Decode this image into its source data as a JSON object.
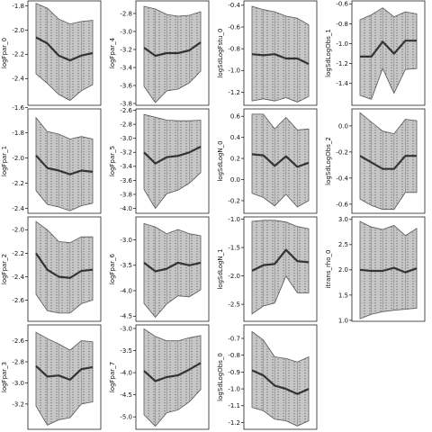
{
  "chart_data": [
    {
      "type": "area",
      "ylabel": "logFpar_0",
      "ylim": [
        -2.62,
        -1.76
      ],
      "yticks": [
        -1.8,
        -2.0,
        -2.2,
        -2.4
      ],
      "x": [
        0,
        1,
        2,
        3,
        4,
        5
      ],
      "upper": [
        -1.78,
        -1.82,
        -1.91,
        -1.95,
        -1.93,
        -1.92
      ],
      "lower": [
        -2.36,
        -2.44,
        -2.53,
        -2.58,
        -2.5,
        -2.45
      ],
      "values": [
        -2.06,
        -2.11,
        -2.21,
        -2.25,
        -2.21,
        -2.19
      ]
    },
    {
      "type": "area",
      "ylabel": "logFpar_1",
      "ylim": [
        -2.44,
        -1.61
      ],
      "yticks": [
        -1.6,
        -1.8,
        -2.0,
        -2.2,
        -2.4
      ],
      "x": [
        0,
        1,
        2,
        3,
        4,
        5
      ],
      "upper": [
        -1.68,
        -1.79,
        -1.81,
        -1.85,
        -1.83,
        -1.85
      ],
      "lower": [
        -2.26,
        -2.37,
        -2.39,
        -2.42,
        -2.38,
        -2.36
      ],
      "values": [
        -1.98,
        -2.08,
        -2.1,
        -2.13,
        -2.1,
        -2.11
      ]
    },
    {
      "type": "area",
      "ylabel": "logFpar_2",
      "ylim": [
        -2.78,
        -1.89
      ],
      "yticks": [
        -2.0,
        -2.2,
        -2.4,
        -2.6
      ],
      "x": [
        0,
        1,
        2,
        3,
        4,
        5
      ],
      "upper": [
        -1.93,
        -2.0,
        -2.1,
        -2.11,
        -2.06,
        -2.06
      ],
      "lower": [
        -2.55,
        -2.69,
        -2.71,
        -2.71,
        -2.63,
        -2.6
      ],
      "values": [
        -2.2,
        -2.34,
        -2.4,
        -2.41,
        -2.35,
        -2.34
      ]
    },
    {
      "type": "area",
      "ylabel": "logFpar_3",
      "ylim": [
        -3.44,
        -2.45
      ],
      "yticks": [
        -2.6,
        -2.8,
        -3.0,
        -3.2
      ],
      "x": [
        0,
        1,
        2,
        3,
        4,
        5
      ],
      "upper": [
        -2.52,
        -2.58,
        -2.63,
        -2.69,
        -2.6,
        -2.61
      ],
      "lower": [
        -3.22,
        -3.4,
        -3.35,
        -3.33,
        -3.2,
        -3.18
      ],
      "values": [
        -2.84,
        -2.94,
        -2.93,
        -2.97,
        -2.87,
        -2.85
      ]
    },
    {
      "type": "area",
      "ylabel": "logFpar_4",
      "ylim": [
        -3.82,
        -2.66
      ],
      "yticks": [
        -2.8,
        -3.0,
        -3.2,
        -3.4,
        -3.6,
        -3.8
      ],
      "x": [
        0,
        1,
        2,
        3,
        4,
        5
      ],
      "upper": [
        -2.72,
        -2.75,
        -2.81,
        -2.83,
        -2.82,
        -2.78
      ],
      "lower": [
        -3.61,
        -3.79,
        -3.66,
        -3.64,
        -3.57,
        -3.44
      ],
      "values": [
        -3.18,
        -3.27,
        -3.24,
        -3.24,
        -3.21,
        -3.12
      ]
    },
    {
      "type": "area",
      "ylabel": "logFpar_5",
      "ylim": [
        -4.07,
        -2.58
      ],
      "yticks": [
        -2.6,
        -2.8,
        -3.0,
        -3.2,
        -3.4,
        -3.6,
        -3.8,
        -4.0
      ],
      "x": [
        0,
        1,
        2,
        3,
        4,
        5
      ],
      "upper": [
        -2.66,
        -2.7,
        -2.74,
        -2.75,
        -2.75,
        -2.74
      ],
      "lower": [
        -3.73,
        -4.0,
        -3.79,
        -3.74,
        -3.64,
        -3.49
      ],
      "values": [
        -3.2,
        -3.36,
        -3.27,
        -3.25,
        -3.2,
        -3.12
      ]
    },
    {
      "type": "area",
      "ylabel": "logFpar_6",
      "ylim": [
        -4.6,
        -2.55
      ],
      "yticks": [
        -3.0,
        -3.5,
        -4.0,
        -4.5
      ],
      "x": [
        0,
        1,
        2,
        3,
        4,
        5
      ],
      "upper": [
        -2.68,
        -2.75,
        -2.88,
        -2.8,
        -2.88,
        -2.92
      ],
      "lower": [
        -4.25,
        -4.52,
        -4.26,
        -4.1,
        -4.12,
        -3.98
      ],
      "values": [
        -3.45,
        -3.62,
        -3.57,
        -3.45,
        -3.5,
        -3.45
      ]
    },
    {
      "type": "area",
      "ylabel": "logFpar_7",
      "ylim": [
        -5.28,
        -2.92
      ],
      "yticks": [
        -3.0,
        -3.5,
        -4.0,
        -4.5,
        -5.0
      ],
      "x": [
        0,
        1,
        2,
        3,
        4,
        5
      ],
      "upper": [
        -3.01,
        -3.18,
        -3.28,
        -3.28,
        -3.21,
        -3.16
      ],
      "lower": [
        -4.95,
        -5.21,
        -4.91,
        -4.84,
        -4.66,
        -4.38
      ],
      "values": [
        -3.96,
        -4.19,
        -4.1,
        -4.06,
        -3.93,
        -3.78
      ]
    },
    {
      "type": "area",
      "ylabel": "logSdLogFstu_0",
      "ylim": [
        -1.32,
        -0.36
      ],
      "yticks": [
        -0.4,
        -0.6,
        -0.8,
        -1.0,
        -1.2
      ],
      "x": [
        0,
        1,
        2,
        3,
        4,
        5
      ],
      "upper": [
        -0.41,
        -0.44,
        -0.46,
        -0.5,
        -0.52,
        -0.58
      ],
      "lower": [
        -1.28,
        -1.26,
        -1.28,
        -1.25,
        -1.29,
        -1.24
      ],
      "values": [
        -0.85,
        -0.86,
        -0.85,
        -0.89,
        -0.89,
        -0.94
      ]
    },
    {
      "type": "area",
      "ylabel": "logSdLogN_0",
      "ylim": [
        -0.32,
        0.67
      ],
      "yticks": [
        0.6,
        0.4,
        0.2,
        0.0,
        -0.2
      ],
      "x": [
        0,
        1,
        2,
        3,
        4,
        5
      ],
      "upper": [
        0.62,
        0.62,
        0.48,
        0.59,
        0.47,
        0.48
      ],
      "lower": [
        -0.13,
        -0.17,
        -0.25,
        -0.14,
        -0.26,
        -0.2
      ],
      "values": [
        0.24,
        0.23,
        0.13,
        0.22,
        0.12,
        0.16
      ]
    },
    {
      "type": "area",
      "ylabel": "logSdLogN_1",
      "ylim": [
        -2.8,
        -0.96
      ],
      "yticks": [
        -1.0,
        -1.5,
        -2.0,
        -2.5
      ],
      "x": [
        0,
        1,
        2,
        3,
        4,
        5
      ],
      "upper": [
        -1.04,
        -1.02,
        -1.02,
        -1.05,
        -1.13,
        -1.17
      ],
      "lower": [
        -2.67,
        -2.53,
        -2.48,
        -2.0,
        -2.3,
        -2.3
      ],
      "values": [
        -1.91,
        -1.81,
        -1.79,
        -1.54,
        -1.74,
        -1.76
      ]
    },
    {
      "type": "area",
      "ylabel": "logSdLogObs_0",
      "ylim": [
        -1.24,
        -0.62
      ],
      "yticks": [
        -0.7,
        -0.8,
        -0.9,
        -1.0,
        -1.1,
        -1.2
      ],
      "x": [
        0,
        1,
        2,
        3,
        4,
        5
      ],
      "upper": [
        -0.66,
        -0.71,
        -0.81,
        -0.82,
        -0.84,
        -0.81
      ],
      "lower": [
        -1.11,
        -1.13,
        -1.18,
        -1.19,
        -1.22,
        -1.19
      ],
      "values": [
        -0.89,
        -0.92,
        -0.98,
        -1.0,
        -1.03,
        -1.0
      ]
    },
    {
      "type": "area",
      "ylabel": "logSdLogObs_1",
      "ylim": [
        -1.62,
        -0.57
      ],
      "yticks": [
        -0.6,
        -0.8,
        -1.0,
        -1.2,
        -1.4
      ],
      "x": [
        0,
        1,
        2,
        3,
        4,
        5
      ],
      "upper": [
        -0.76,
        -0.71,
        -0.64,
        -0.73,
        -0.68,
        -0.7
      ],
      "lower": [
        -1.52,
        -1.56,
        -1.25,
        -1.5,
        -1.26,
        -1.25
      ],
      "values": [
        -1.13,
        -1.13,
        -0.98,
        -1.1,
        -0.97,
        -0.97
      ]
    },
    {
      "type": "area",
      "ylabel": "logSdLogObs_2",
      "ylim": [
        -0.67,
        0.13
      ],
      "yticks": [
        0.0,
        -0.2,
        -0.4,
        -0.6
      ],
      "x": [
        0,
        1,
        2,
        3,
        4,
        5
      ],
      "upper": [
        0.1,
        0.03,
        -0.04,
        -0.06,
        0.05,
        0.04
      ],
      "lower": [
        -0.56,
        -0.61,
        -0.64,
        -0.64,
        -0.51,
        -0.51
      ],
      "values": [
        -0.23,
        -0.28,
        -0.33,
        -0.33,
        -0.23,
        -0.23
      ]
    },
    {
      "type": "area",
      "ylabel": "itrans_rho_0",
      "ylim": [
        0.98,
        3.05
      ],
      "yticks": [
        1.0,
        1.5,
        2.0,
        2.5,
        3.0
      ],
      "x": [
        0,
        1,
        2,
        3,
        4,
        5
      ],
      "upper": [
        2.96,
        2.85,
        2.8,
        2.88,
        2.68,
        2.82
      ],
      "lower": [
        1.03,
        1.12,
        1.17,
        1.2,
        1.22,
        1.24
      ],
      "values": [
        2.0,
        1.98,
        1.98,
        2.04,
        1.95,
        2.03
      ]
    }
  ]
}
